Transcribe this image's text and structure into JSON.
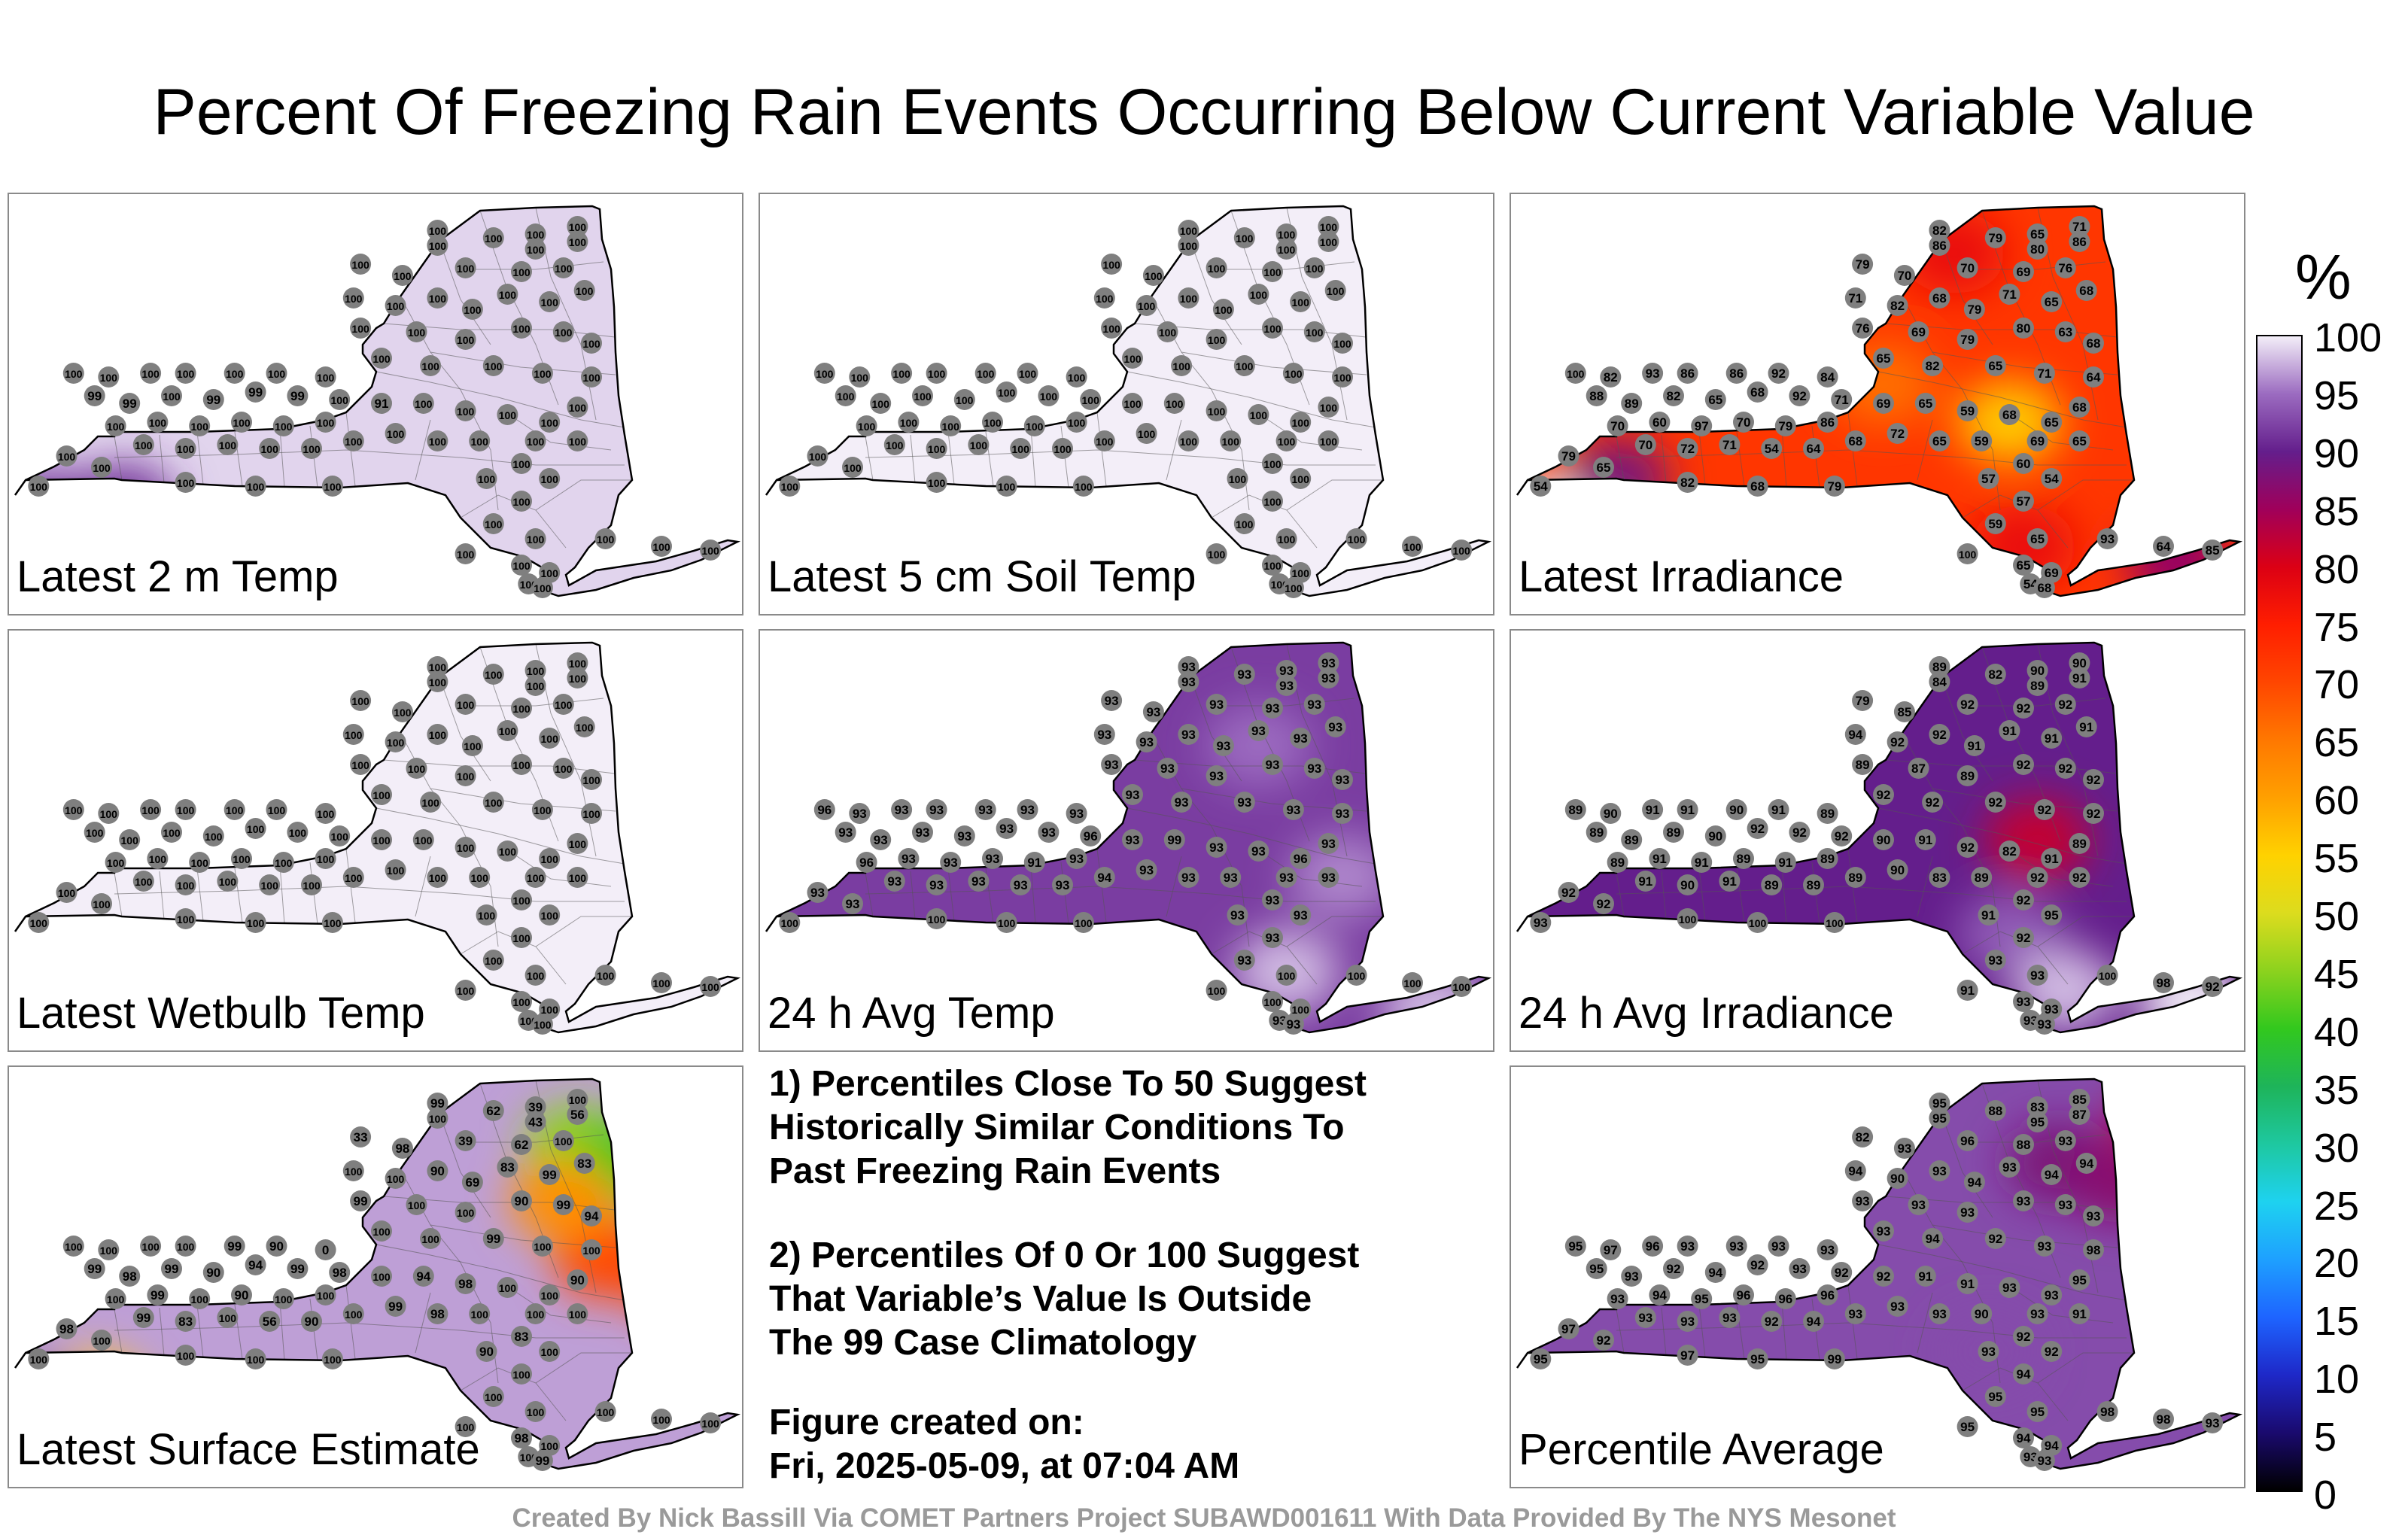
{
  "title": "Percent Of Freezing Rain Events Occurring Below Current Variable Value",
  "colors": {
    "state_fill_light": "#f0ebf5",
    "state_fill_purple": "#7a3fa0",
    "station_marker": "#808080",
    "county_lines": "#555555"
  },
  "panels": [
    {
      "label": "Latest 2 m Temp",
      "field": {
        "base": 99,
        "hot": [
          [
            0.02,
            0.78,
            92
          ],
          [
            0.13,
            0.77,
            91
          ]
        ]
      },
      "values": [
        100,
        100,
        100,
        100,
        100,
        100,
        100,
        100,
        100,
        100,
        100,
        100,
        100,
        100,
        100,
        100,
        100,
        100,
        100,
        100,
        100,
        100,
        100,
        100,
        100,
        100,
        100,
        100,
        100,
        100,
        100,
        100,
        100,
        100,
        100,
        100,
        100,
        100,
        99,
        99,
        100,
        99,
        99,
        99,
        100,
        91,
        100,
        100,
        100,
        100,
        100,
        100,
        100,
        100,
        100,
        100,
        100,
        100,
        100,
        100,
        100,
        100,
        100,
        100,
        100,
        100,
        100,
        100,
        100,
        100,
        100,
        100,
        100,
        100,
        100,
        100,
        100,
        100,
        100,
        100,
        100,
        100,
        100,
        100,
        100,
        100,
        100
      ]
    },
    {
      "label": "Latest 5 cm Soil Temp",
      "field": {
        "base": 100,
        "hot": []
      },
      "values": [
        100,
        100,
        100,
        100,
        100,
        100,
        100,
        100,
        100,
        100,
        100,
        100,
        100,
        100,
        100,
        100,
        100,
        100,
        100,
        100,
        100,
        100,
        100,
        100,
        100,
        100,
        100,
        100,
        100,
        100,
        100,
        100,
        100,
        100,
        100,
        100,
        100,
        100,
        100,
        100,
        100,
        100,
        100,
        100,
        100,
        100,
        100,
        100,
        100,
        100,
        100,
        100,
        100,
        100,
        100,
        100,
        100,
        100,
        100,
        100,
        100,
        100,
        100,
        100,
        100,
        100,
        100,
        100,
        100,
        100,
        100,
        100,
        100,
        100,
        100,
        100,
        100,
        100,
        100,
        100,
        100,
        100,
        100,
        100,
        100,
        100,
        100
      ]
    },
    {
      "label": "Latest Irradiance",
      "field": {
        "base": 72,
        "hot": [
          [
            0.05,
            0.78,
            100
          ],
          [
            0.12,
            0.7,
            88
          ],
          [
            0.6,
            0.1,
            78
          ],
          [
            0.68,
            0.55,
            56
          ],
          [
            0.7,
            0.88,
            78
          ],
          [
            0.5,
            0.45,
            66
          ],
          [
            0.92,
            0.92,
            86
          ]
        ]
      },
      "values": [
        82,
        86,
        79,
        65,
        80,
        71,
        86,
        79,
        70,
        70,
        69,
        76,
        71,
        82,
        68,
        79,
        71,
        65,
        68,
        76,
        69,
        79,
        80,
        63,
        68,
        65,
        82,
        65,
        71,
        64,
        68,
        100,
        82,
        93,
        86,
        86,
        92,
        84,
        88,
        89,
        82,
        65,
        68,
        92,
        71,
        69,
        65,
        59,
        68,
        65,
        70,
        60,
        97,
        70,
        79,
        86,
        79,
        65,
        70,
        72,
        71,
        54,
        64,
        68,
        72,
        65,
        59,
        69,
        65,
        60,
        57,
        54,
        57,
        59,
        65,
        54,
        100,
        65,
        69,
        54,
        68,
        64,
        85,
        93,
        79,
        82,
        68
      ]
    },
    {
      "label": "Latest Wetbulb Temp",
      "field": {
        "base": 100,
        "hot": []
      },
      "values": [
        100,
        100,
        100,
        100,
        100,
        100,
        100,
        100,
        100,
        100,
        100,
        100,
        100,
        100,
        100,
        100,
        100,
        100,
        100,
        100,
        100,
        100,
        100,
        100,
        100,
        100,
        100,
        100,
        100,
        100,
        100,
        100,
        100,
        100,
        100,
        100,
        100,
        100,
        100,
        100,
        100,
        100,
        100,
        100,
        100,
        100,
        100,
        100,
        100,
        100,
        100,
        100,
        100,
        100,
        100,
        100,
        100,
        100,
        100,
        100,
        100,
        100,
        100,
        100,
        100,
        100,
        100,
        100,
        100,
        100,
        100,
        100,
        100,
        100,
        100,
        100,
        100,
        100,
        100,
        100,
        100,
        100,
        100,
        100,
        100,
        100,
        100
      ]
    },
    {
      "label": "24 h Avg Temp",
      "field": {
        "base": 92,
        "hot": [
          [
            0.72,
            0.85,
            98
          ],
          [
            0.68,
            0.25,
            95
          ],
          [
            0.8,
            0.6,
            96
          ],
          [
            0.93,
            0.95,
            98
          ]
        ]
      },
      "values": [
        93,
        93,
        93,
        93,
        93,
        93,
        93,
        93,
        93,
        93,
        93,
        93,
        93,
        93,
        93,
        93,
        93,
        93,
        93,
        93,
        93,
        93,
        93,
        93,
        93,
        93,
        93,
        93,
        93,
        93,
        93,
        96,
        93,
        93,
        93,
        93,
        93,
        93,
        93,
        93,
        93,
        93,
        93,
        93,
        96,
        93,
        99,
        93,
        93,
        96,
        96,
        93,
        93,
        93,
        91,
        93,
        93,
        93,
        93,
        93,
        93,
        93,
        93,
        94,
        93,
        93,
        93,
        93,
        93,
        93,
        93,
        93,
        93,
        93,
        100,
        100,
        100,
        100,
        100,
        93,
        93,
        100,
        100,
        100,
        100,
        100,
        100
      ]
    },
    {
      "label": "24 h Avg Irradiance",
      "field": {
        "base": 90,
        "hot": [
          [
            0.72,
            0.5,
            82
          ],
          [
            0.68,
            0.75,
            94
          ],
          [
            0.76,
            0.9,
            98
          ],
          [
            0.94,
            0.93,
            100
          ]
        ]
      },
      "values": [
        89,
        84,
        82,
        90,
        89,
        90,
        91,
        79,
        85,
        92,
        92,
        92,
        94,
        92,
        92,
        91,
        91,
        91,
        91,
        89,
        87,
        89,
        92,
        92,
        92,
        92,
        92,
        92,
        92,
        92,
        89,
        89,
        90,
        91,
        91,
        90,
        91,
        89,
        89,
        89,
        89,
        90,
        92,
        92,
        92,
        90,
        91,
        92,
        82,
        91,
        89,
        91,
        91,
        89,
        91,
        89,
        92,
        92,
        91,
        90,
        91,
        89,
        89,
        89,
        90,
        83,
        89,
        92,
        92,
        92,
        91,
        95,
        92,
        93,
        93,
        93,
        91,
        93,
        93,
        93,
        93,
        98,
        92,
        100,
        100,
        100,
        100
      ]
    },
    {
      "label": "Latest Surface Estimate",
      "field": {
        "base": 97,
        "hot": [
          [
            0.09,
            0.82,
            56
          ],
          [
            0.01,
            0.85,
            90
          ],
          [
            0.78,
            0.15,
            45
          ],
          [
            0.85,
            0.2,
            40
          ],
          [
            0.93,
            0.52,
            70
          ],
          [
            0.82,
            0.45,
            70
          ],
          [
            0.76,
            0.3,
            62
          ]
        ]
      },
      "values": [
        99,
        100,
        62,
        39,
        43,
        100,
        56,
        33,
        98,
        39,
        62,
        100,
        100,
        100,
        90,
        69,
        83,
        99,
        83,
        99,
        100,
        100,
        90,
        99,
        94,
        100,
        100,
        99,
        100,
        100,
        90,
        100,
        100,
        100,
        100,
        99,
        90,
        0,
        99,
        98,
        99,
        90,
        94,
        99,
        98,
        100,
        94,
        98,
        100,
        100,
        100,
        99,
        100,
        90,
        100,
        100,
        98,
        100,
        99,
        83,
        100,
        56,
        90,
        100,
        99,
        98,
        100,
        100,
        100,
        83,
        90,
        100,
        100,
        100,
        100,
        100,
        100,
        98,
        100,
        100,
        99,
        100,
        100,
        100,
        100,
        100,
        100
      ]
    },
    {
      "label": "Percentile Average",
      "field": {
        "base": 93,
        "hot": [
          [
            0.75,
            0.2,
            88
          ],
          [
            0.9,
            0.1,
            83
          ],
          [
            0.84,
            0.25,
            87
          ],
          [
            0.65,
            0.7,
            93
          ]
        ]
      },
      "values": [
        95,
        95,
        88,
        83,
        95,
        85,
        87,
        82,
        93,
        96,
        88,
        93,
        94,
        90,
        93,
        94,
        93,
        94,
        94,
        93,
        93,
        93,
        93,
        93,
        93,
        93,
        94,
        92,
        93,
        98,
        95,
        95,
        97,
        96,
        93,
        93,
        93,
        93,
        95,
        93,
        92,
        94,
        92,
        93,
        92,
        92,
        91,
        91,
        93,
        93,
        93,
        94,
        95,
        96,
        96,
        96,
        97,
        92,
        93,
        93,
        93,
        92,
        94,
        93,
        93,
        93,
        90,
        93,
        91,
        92,
        93,
        92,
        94,
        95,
        95,
        95,
        95,
        94,
        94,
        93,
        93,
        98,
        93,
        98,
        99,
        97,
        95
      ]
    }
  ],
  "notes": {
    "note1": [
      "1) Percentiles Close To 50 Suggest",
      "Historically Similar Conditions To",
      "Past Freezing Rain Events"
    ],
    "note2": [
      "2) Percentiles Of 0 Or 100 Suggest",
      "That Variable’s Value Is Outside",
      "The 99 Case Climatology"
    ],
    "created_label": "Figure created on:",
    "created_value": "Fri, 2025-05-09, at 07:04 AM"
  },
  "legend": {
    "unit": "%",
    "ticks": [
      "100",
      "95",
      "90",
      "85",
      "80",
      "75",
      "70",
      "65",
      "60",
      "55",
      "50",
      "45",
      "40",
      "35",
      "30",
      "25",
      "20",
      "15",
      "10",
      "5",
      "0"
    ],
    "color_stops": [
      [
        0,
        "#000000"
      ],
      [
        5,
        "#1a0a6e"
      ],
      [
        10,
        "#1e28c8"
      ],
      [
        15,
        "#1e64ff"
      ],
      [
        20,
        "#1ea0ff"
      ],
      [
        25,
        "#1ed2f0"
      ],
      [
        30,
        "#1ec8a0"
      ],
      [
        35,
        "#1eb45a"
      ],
      [
        40,
        "#32c81e"
      ],
      [
        45,
        "#8cd21e"
      ],
      [
        50,
        "#dcdc1e"
      ],
      [
        55,
        "#ffd200"
      ],
      [
        60,
        "#ffa000"
      ],
      [
        65,
        "#ff7800"
      ],
      [
        70,
        "#ff4600"
      ],
      [
        75,
        "#ff1e00"
      ],
      [
        80,
        "#dc0014"
      ],
      [
        85,
        "#a0005a"
      ],
      [
        90,
        "#641e8c"
      ],
      [
        95,
        "#9b6bc0"
      ],
      [
        100,
        "#f3eef8"
      ]
    ]
  },
  "footer": "Created By Nick Bassill Via COMET Partners Project SUBAWD001611 With Data Provided By The NYS Mesonet"
}
